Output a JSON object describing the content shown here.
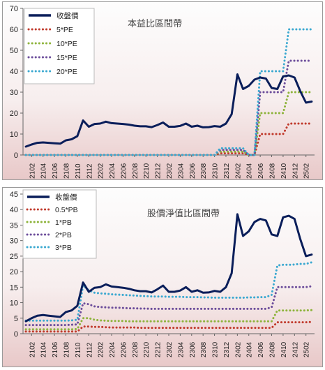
{
  "chart_data": [
    {
      "type": "line",
      "title": "本益比區間帶",
      "ylim": [
        0,
        70
      ],
      "yticks": [
        0,
        10,
        20,
        30,
        40,
        50,
        60,
        70
      ],
      "x": [
        "2101",
        "2102",
        "2103",
        "2104",
        "2105",
        "2106",
        "2107",
        "2108",
        "2109",
        "2110",
        "2111",
        "2112",
        "2201",
        "2202",
        "2203",
        "2204",
        "2205",
        "2206",
        "2207",
        "2208",
        "2209",
        "2210",
        "2211",
        "2212",
        "2301",
        "2302",
        "2303",
        "2304",
        "2305",
        "2306",
        "2307",
        "2308",
        "2309",
        "2310",
        "2311",
        "2312",
        "2401",
        "2402",
        "2403",
        "2404",
        "2405",
        "2406",
        "2407",
        "2408",
        "2409",
        "2410",
        "2411",
        "2412",
        "2501",
        "2502",
        "2503"
      ],
      "xtick_labels": [
        "2102",
        "2104",
        "2106",
        "2108",
        "2110",
        "2112",
        "2202",
        "2204",
        "2206",
        "2208",
        "2210",
        "2212",
        "2302",
        "2304",
        "2306",
        "2308",
        "2310",
        "2312",
        "2402",
        "2404",
        "2406",
        "2408",
        "2410",
        "2412",
        "2502"
      ],
      "legend_position": "top-left",
      "series": [
        {
          "name": "收盤價",
          "color": "#0a1e5a",
          "style": "solid",
          "values": [
            4,
            5,
            5.8,
            6,
            5.8,
            5.6,
            5.4,
            7,
            7.5,
            9,
            16.5,
            13.5,
            14.8,
            15,
            15.9,
            15.2,
            15,
            14.8,
            14.5,
            14,
            13.7,
            13.7,
            13.3,
            14.3,
            15.5,
            13.5,
            13.5,
            13.9,
            15,
            13.5,
            14,
            13.2,
            13.3,
            13.8,
            13.5,
            15,
            19.5,
            38.5,
            31.5,
            33,
            36,
            37,
            36.5,
            32,
            31.5,
            37.5,
            38,
            37,
            30.5,
            25,
            25.5
          ]
        },
        {
          "name": "5*PE",
          "color": "#c0392b",
          "style": "dotted",
          "values": [
            0,
            0,
            0,
            0,
            0,
            0,
            0,
            0,
            0,
            0,
            0,
            0,
            0,
            0,
            0,
            0,
            0,
            0,
            0,
            0,
            0,
            0,
            0,
            0,
            0,
            0,
            0,
            0,
            0,
            0,
            0,
            0,
            0,
            0,
            0.8,
            0.8,
            0.8,
            0.8,
            0.8,
            0,
            0,
            10,
            10,
            10,
            10,
            10,
            15,
            15,
            15,
            15,
            15
          ]
        },
        {
          "name": "10*PE",
          "color": "#8db33a",
          "style": "dotted",
          "values": [
            0,
            0,
            0,
            0,
            0,
            0,
            0,
            0,
            0,
            0,
            0,
            0,
            0,
            0,
            0,
            0,
            0,
            0,
            0,
            0,
            0,
            0,
            0,
            0,
            0,
            0,
            0,
            0,
            0,
            0,
            0,
            0,
            0,
            0,
            1.6,
            1.6,
            1.6,
            1.6,
            1.6,
            0,
            0,
            20,
            20,
            20,
            20,
            20,
            30,
            30,
            30,
            30,
            30
          ]
        },
        {
          "name": "15*PE",
          "color": "#6b4c9a",
          "style": "dotted",
          "values": [
            0,
            0,
            0,
            0,
            0,
            0,
            0,
            0,
            0,
            0,
            0,
            0,
            0,
            0,
            0,
            0,
            0,
            0,
            0,
            0,
            0,
            0,
            0,
            0,
            0,
            0,
            0,
            0,
            0,
            0,
            0,
            0,
            0,
            0,
            2.4,
            2.4,
            2.4,
            2.4,
            2.4,
            0,
            0,
            30,
            30,
            30,
            30,
            30,
            45,
            45,
            45,
            45,
            45
          ]
        },
        {
          "name": "20*PE",
          "color": "#3aa8d0",
          "style": "dotted",
          "values": [
            0,
            0,
            0,
            0,
            0,
            0,
            0,
            0,
            0,
            0,
            0,
            0,
            0,
            0,
            0,
            0,
            0,
            0,
            0,
            0,
            0,
            0,
            0,
            0,
            0,
            0,
            0,
            0,
            0,
            0,
            0,
            0,
            0,
            0,
            3.2,
            3.2,
            3.2,
            3.2,
            3.2,
            0,
            0,
            40,
            40,
            40,
            40,
            40,
            60,
            60,
            60,
            60,
            60
          ]
        }
      ]
    },
    {
      "type": "line",
      "title": "股價淨值比區間帶",
      "ylim": [
        0,
        45
      ],
      "yticks": [
        0,
        5,
        10,
        15,
        20,
        25,
        30,
        35,
        40,
        45
      ],
      "x": [
        "2101",
        "2102",
        "2103",
        "2104",
        "2105",
        "2106",
        "2107",
        "2108",
        "2109",
        "2110",
        "2111",
        "2112",
        "2201",
        "2202",
        "2203",
        "2204",
        "2205",
        "2206",
        "2207",
        "2208",
        "2209",
        "2210",
        "2211",
        "2212",
        "2301",
        "2302",
        "2303",
        "2304",
        "2305",
        "2306",
        "2307",
        "2308",
        "2309",
        "2310",
        "2311",
        "2312",
        "2401",
        "2402",
        "2403",
        "2404",
        "2405",
        "2406",
        "2407",
        "2408",
        "2409",
        "2410",
        "2411",
        "2412",
        "2501",
        "2502",
        "2503"
      ],
      "xtick_labels": [
        "2102",
        "2104",
        "2106",
        "2108",
        "2110",
        "2112",
        "2202",
        "2204",
        "2206",
        "2208",
        "2210",
        "2212",
        "2302",
        "2304",
        "2306",
        "2308",
        "2310",
        "2312",
        "2402",
        "2404",
        "2406",
        "2408",
        "2410",
        "2412",
        "2502"
      ],
      "legend_position": "top-left",
      "series": [
        {
          "name": "收盤價",
          "color": "#0a1e5a",
          "style": "solid",
          "values": [
            4,
            5,
            5.8,
            6,
            5.8,
            5.6,
            5.4,
            7,
            7.5,
            9,
            16.5,
            13.5,
            14.8,
            15,
            15.9,
            15.2,
            15,
            14.8,
            14.5,
            14,
            13.7,
            13.7,
            13.3,
            14.3,
            15.5,
            13.5,
            13.5,
            13.9,
            15,
            13.5,
            14,
            13.2,
            13.3,
            13.8,
            13.5,
            15,
            19.5,
            38.5,
            31.5,
            33,
            36,
            37,
            36.5,
            32,
            31.5,
            37.5,
            38,
            37,
            30.5,
            25,
            25.5
          ]
        },
        {
          "name": "0.5*PB",
          "color": "#c0392b",
          "style": "dotted",
          "values": [
            0.7,
            0.7,
            0.7,
            0.7,
            0.7,
            0.7,
            0.7,
            0.7,
            0.7,
            0.7,
            2.3,
            2.3,
            2.2,
            2.2,
            2.1,
            2,
            2,
            2,
            2,
            2,
            1.9,
            1.9,
            1.9,
            1.9,
            1.9,
            1.9,
            1.9,
            1.9,
            1.9,
            1.9,
            1.9,
            1.9,
            1.9,
            1.9,
            1.9,
            1.9,
            1.9,
            1.9,
            1.9,
            1.9,
            1.9,
            1.9,
            1.9,
            1.9,
            3.7,
            3.7,
            3.7,
            3.7,
            3.7,
            3.7,
            3.8
          ]
        },
        {
          "name": "1*PB",
          "color": "#8db33a",
          "style": "dotted",
          "values": [
            1.4,
            1.4,
            1.4,
            1.4,
            1.4,
            1.4,
            1.4,
            1.4,
            1.4,
            1.5,
            5,
            5,
            4.5,
            4.3,
            4.2,
            4.1,
            4.1,
            4.1,
            4,
            4,
            4,
            4,
            4,
            4,
            4,
            4,
            4,
            4,
            4,
            4,
            4,
            4,
            4,
            4,
            4,
            4,
            4,
            4,
            4,
            4,
            4,
            4,
            4,
            4,
            7.5,
            7.5,
            7.5,
            7.5,
            7.5,
            7.5,
            7.6
          ]
        },
        {
          "name": "2*PB",
          "color": "#6b4c9a",
          "style": "dotted",
          "values": [
            2.8,
            2.8,
            2.8,
            2.8,
            2.8,
            2.8,
            2.8,
            2.8,
            2.9,
            3,
            9.8,
            9.5,
            8.8,
            8.6,
            8.5,
            8.4,
            8.4,
            8.3,
            8.2,
            8.2,
            8.1,
            8.1,
            8,
            8,
            8,
            8,
            8,
            8,
            8,
            8,
            8,
            8,
            8,
            8,
            8,
            8,
            8,
            8,
            8,
            8,
            8,
            8,
            8,
            8.5,
            15,
            15,
            15,
            15,
            15,
            15,
            15.3
          ]
        },
        {
          "name": "3*PB",
          "color": "#3aa8d0",
          "style": "dotted",
          "values": [
            4.2,
            4.2,
            4.2,
            4.2,
            4.2,
            4.2,
            4.2,
            4.2,
            4.3,
            4.5,
            15.5,
            14,
            13.2,
            13,
            12.9,
            12.7,
            12.6,
            12.5,
            12.4,
            12.3,
            12.2,
            12.1,
            12,
            12,
            12,
            11.9,
            11.9,
            11.9,
            11.8,
            11.8,
            11.8,
            11.7,
            11.7,
            11.6,
            11.6,
            11.6,
            11.6,
            11.6,
            11.6,
            11.7,
            11.7,
            11.8,
            11.8,
            12.5,
            22,
            22.2,
            22.2,
            22.3,
            22.5,
            22.5,
            23
          ]
        }
      ]
    }
  ]
}
